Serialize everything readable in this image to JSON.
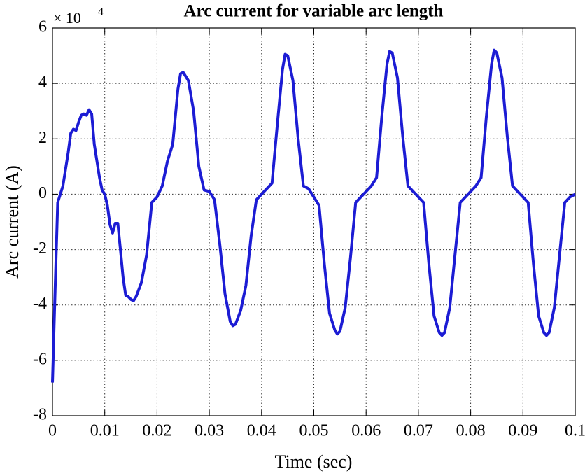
{
  "chart_data": {
    "type": "line",
    "title": "Arc current for variable arc length",
    "xlabel": "Time (sec)",
    "ylabel": "Arc current (A)",
    "y_multiplier": {
      "base": "× 10",
      "exponent": "4"
    },
    "color": "#1c1cd4",
    "grid": true,
    "xlim": [
      0,
      0.1
    ],
    "ylim": [
      -8,
      6
    ],
    "xticks": [
      0,
      0.01,
      0.02,
      0.03,
      0.04,
      0.05,
      0.06,
      0.07,
      0.08,
      0.09,
      0.1
    ],
    "yticks": [
      -8,
      -6,
      -4,
      -2,
      0,
      2,
      4,
      6
    ],
    "x": [
      0,
      0.0005,
      0.001,
      0.002,
      0.003,
      0.0035,
      0.004,
      0.0045,
      0.005,
      0.0055,
      0.006,
      0.0065,
      0.007,
      0.0075,
      0.008,
      0.009,
      0.0095,
      0.01,
      0.0105,
      0.011,
      0.0115,
      0.012,
      0.0125,
      0.013,
      0.0135,
      0.014,
      0.0145,
      0.015,
      0.0155,
      0.016,
      0.017,
      0.018,
      0.019,
      0.02,
      0.021,
      0.022,
      0.023,
      0.024,
      0.0245,
      0.025,
      0.026,
      0.027,
      0.028,
      0.029,
      0.03,
      0.031,
      0.032,
      0.033,
      0.034,
      0.0345,
      0.035,
      0.036,
      0.037,
      0.038,
      0.039,
      0.04,
      0.041,
      0.042,
      0.043,
      0.044,
      0.0445,
      0.045,
      0.046,
      0.047,
      0.048,
      0.049,
      0.05,
      0.051,
      0.052,
      0.053,
      0.054,
      0.0545,
      0.055,
      0.056,
      0.057,
      0.058,
      0.059,
      0.06,
      0.061,
      0.062,
      0.063,
      0.064,
      0.0645,
      0.065,
      0.066,
      0.067,
      0.068,
      0.069,
      0.07,
      0.071,
      0.072,
      0.073,
      0.074,
      0.0745,
      0.075,
      0.076,
      0.077,
      0.078,
      0.079,
      0.08,
      0.081,
      0.082,
      0.083,
      0.084,
      0.0845,
      0.085,
      0.086,
      0.087,
      0.088,
      0.089,
      0.09,
      0.091,
      0.092,
      0.093,
      0.094,
      0.0945,
      0.095,
      0.096,
      0.097,
      0.098,
      0.099,
      0.1
    ],
    "values": [
      -6.8,
      -3.5,
      -0.3,
      0.3,
      1.5,
      2.2,
      2.35,
      2.3,
      2.6,
      2.85,
      2.9,
      2.85,
      3.05,
      2.9,
      1.8,
      0.6,
      0.15,
      0.0,
      -0.4,
      -1.1,
      -1.4,
      -1.05,
      -1.05,
      -2.0,
      -3.0,
      -3.65,
      -3.7,
      -3.8,
      -3.85,
      -3.7,
      -3.2,
      -2.2,
      -0.3,
      -0.1,
      0.3,
      1.2,
      1.8,
      3.8,
      4.35,
      4.4,
      4.1,
      3.0,
      1.0,
      0.15,
      0.1,
      -0.2,
      -1.8,
      -3.6,
      -4.6,
      -4.75,
      -4.7,
      -4.2,
      -3.3,
      -1.5,
      -0.2,
      0.0,
      0.2,
      0.4,
      2.5,
      4.5,
      5.05,
      5.0,
      4.1,
      2.0,
      0.3,
      0.2,
      -0.1,
      -0.4,
      -2.5,
      -4.3,
      -4.9,
      -5.05,
      -4.95,
      -4.1,
      -2.3,
      -0.3,
      -0.1,
      0.1,
      0.3,
      0.6,
      2.8,
      4.7,
      5.15,
      5.1,
      4.2,
      2.1,
      0.3,
      0.1,
      -0.1,
      -0.3,
      -2.5,
      -4.4,
      -5.0,
      -5.1,
      -5.0,
      -4.1,
      -2.2,
      -0.3,
      -0.1,
      0.1,
      0.3,
      0.6,
      2.8,
      4.7,
      5.2,
      5.1,
      4.2,
      2.1,
      0.3,
      0.1,
      -0.1,
      -0.3,
      -2.5,
      -4.4,
      -5.0,
      -5.1,
      -5.0,
      -4.1,
      -2.2,
      -0.3,
      -0.1,
      0.0
    ]
  }
}
